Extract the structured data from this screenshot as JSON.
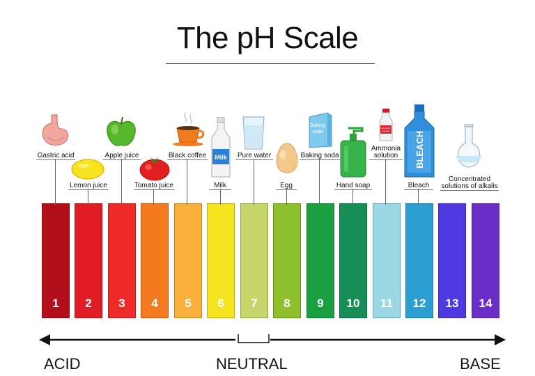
{
  "title": "The pH Scale",
  "scale": [
    {
      "value": "1",
      "color": "#b20f1a"
    },
    {
      "value": "2",
      "color": "#e01d25"
    },
    {
      "value": "3",
      "color": "#ee2b29"
    },
    {
      "value": "4",
      "color": "#f47a1f"
    },
    {
      "value": "5",
      "color": "#fbb03b"
    },
    {
      "value": "6",
      "color": "#f6e320"
    },
    {
      "value": "7",
      "color": "#c6d66b"
    },
    {
      "value": "8",
      "color": "#8ebf2c"
    },
    {
      "value": "9",
      "color": "#1aa040"
    },
    {
      "value": "10",
      "color": "#178e55"
    },
    {
      "value": "11",
      "color": "#9bd8e6"
    },
    {
      "value": "12",
      "color": "#2b9fd2"
    },
    {
      "value": "13",
      "color": "#4e3ae0"
    },
    {
      "value": "14",
      "color": "#6a2ec6"
    }
  ],
  "substances": [
    {
      "name": "Gastric acid",
      "ph": "1",
      "icon": "stomach-icon"
    },
    {
      "name": "Lemon juice",
      "ph": "2",
      "icon": "lemon-icon"
    },
    {
      "name": "Apple juice",
      "ph": "3",
      "icon": "apple-icon"
    },
    {
      "name": "Tomato juice",
      "ph": "4",
      "icon": "tomato-icon"
    },
    {
      "name": "Black coffee",
      "ph": "5",
      "icon": "coffee-cup-icon"
    },
    {
      "name": "Milk",
      "ph": "6",
      "icon": "milk-bottle-icon"
    },
    {
      "name": "Pure water",
      "ph": "7",
      "icon": "water-glass-icon"
    },
    {
      "name": "Egg",
      "ph": "8",
      "icon": "egg-icon"
    },
    {
      "name": "Baking soda",
      "ph": "9",
      "icon": "baking-soda-box-icon"
    },
    {
      "name": "Hand soap",
      "ph": "10",
      "icon": "soap-dispenser-icon"
    },
    {
      "name": "Ammonia solution",
      "ph": "11",
      "icon": "ammonia-bottle-icon"
    },
    {
      "name": "Bleach",
      "ph": "12",
      "icon": "bleach-bottle-icon"
    },
    {
      "name": "Concentrated solutions of alkalis",
      "ph": "13-14",
      "icon": "flask-icon"
    }
  ],
  "labels": {
    "gastric": "Gastric acid",
    "lemon": "Lemon juice",
    "apple": "Apple juice",
    "tomato": "Tomato juice",
    "coffee": "Black coffee",
    "milk": "Milk",
    "water": "Pure water",
    "egg": "Egg",
    "baking": "Baking soda",
    "soap": "Hand soap",
    "ammonia_1": "Ammonia",
    "ammonia_2": "solution",
    "bleach": "Bleach",
    "alkali_1": "Concentrated",
    "alkali_2": "solutions of alkalis"
  },
  "icon_text": {
    "milk": "Milk",
    "baking_1": "Baking",
    "baking_2": "soda",
    "bleach": "BLEACH",
    "ammonia_1": "Ammonia",
    "ammonia_2": "solution"
  },
  "axis": {
    "acid": "ACID",
    "neutral": "NEUTRAL",
    "base": "BASE"
  },
  "colors": {
    "arrow": "#111111",
    "text": "#111111"
  }
}
